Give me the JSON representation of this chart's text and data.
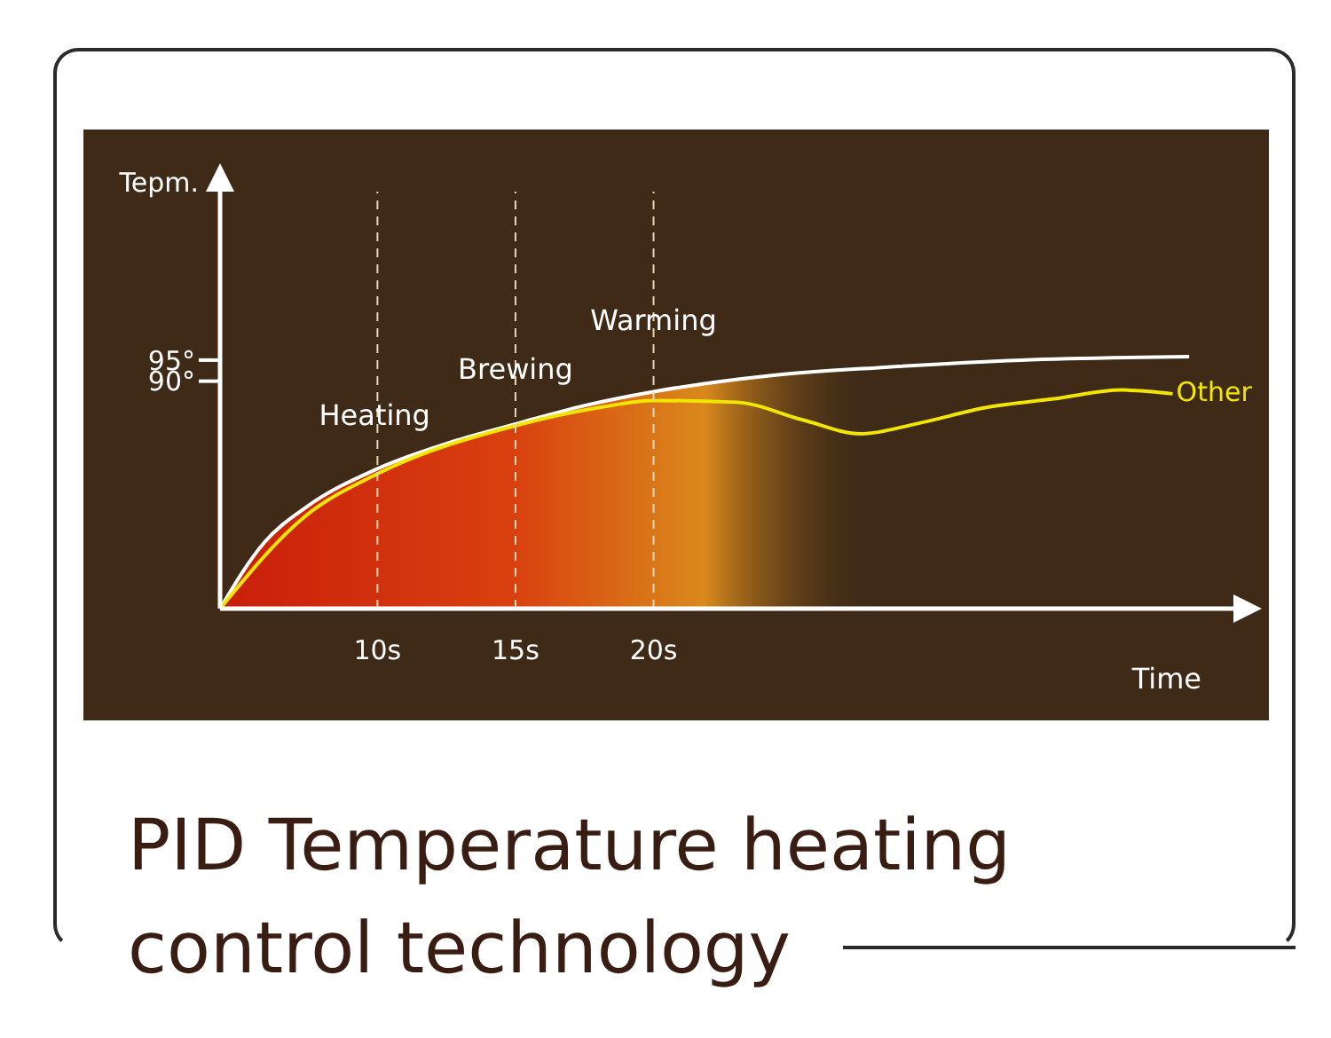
{
  "chart_data": {
    "type": "line",
    "title": "PID Temperature heating control technology",
    "xlabel": "Time",
    "ylabel": "Tepm.",
    "xlim": [
      4.3,
      41
    ],
    "ylim": [
      36,
      135
    ],
    "xticks": [
      {
        "value": 10,
        "label": "10s"
      },
      {
        "value": 15,
        "label": "15s"
      },
      {
        "value": 20,
        "label": "20s"
      }
    ],
    "yticks": [
      {
        "value": 90,
        "label": "90°"
      },
      {
        "value": 95,
        "label": "95°"
      }
    ],
    "marker": "none",
    "line_style": "solid",
    "series": [
      {
        "type": "area",
        "color": "#ffffff",
        "x": [
          4.3,
          5.9,
          7.4,
          10,
          12.6,
          15.1,
          17.5,
          20,
          24.2,
          28.4,
          33.3,
          39.4
        ],
        "values": [
          36,
          51.7,
          60,
          69.2,
          75.4,
          80,
          84.2,
          87.5,
          91.3,
          93.3,
          95,
          95.8
        ]
      },
      {
        "name": "Other",
        "color": "#f2e600",
        "x": [
          4.3,
          7.4,
          10,
          15.1,
          18.1,
          20,
          23,
          25.4,
          27.5,
          29.6,
          32.1,
          34.5,
          37,
          38.8
        ],
        "values": [
          36,
          58,
          68,
          79.6,
          83.8,
          85.4,
          85,
          80.8,
          77.5,
          80,
          83.8,
          85.8,
          87.9,
          87
        ]
      }
    ],
    "ref_lines": [
      {
        "axis": "x",
        "value": 10,
        "color": "#e8d5b5",
        "line_style": "dashed"
      },
      {
        "axis": "x",
        "value": 15,
        "color": "#e8d5b5",
        "line_style": "dashed"
      },
      {
        "axis": "x",
        "value": 20,
        "color": "#e8d5b5",
        "line_style": "dashed"
      }
    ],
    "annotations": [
      {
        "text": "Heating",
        "x": 9.9,
        "y": 82
      },
      {
        "text": "Brewing",
        "x": 15,
        "y": 93
      },
      {
        "text": "Warming",
        "x": 20,
        "y": 104.6
      }
    ]
  }
}
